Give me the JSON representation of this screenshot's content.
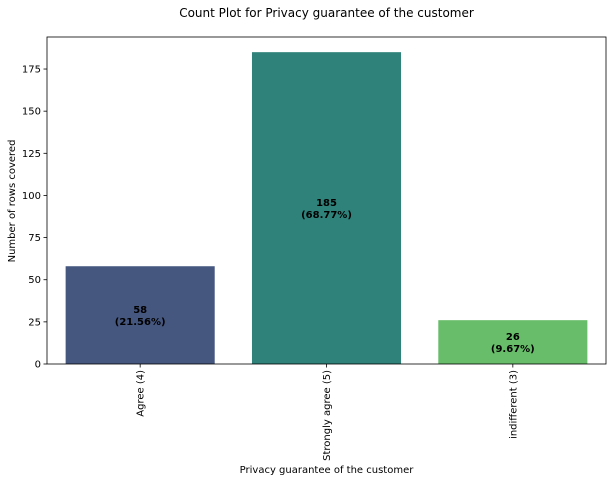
{
  "chart_data": {
    "type": "bar",
    "title": "Count Plot for Privacy guarantee of the customer",
    "xlabel": "Privacy guarantee of the customer",
    "ylabel": "Number of rows covered",
    "categories": [
      "Agree (4)",
      "Strongly agree (5)",
      "indifferent (3)"
    ],
    "values": [
      58,
      185,
      26
    ],
    "percent_labels": [
      "(21.56%)",
      "(68.77%)",
      "(9.67%)"
    ],
    "bar_colors": [
      "#45567f",
      "#2e827a",
      "#67bd69"
    ],
    "ylim": [
      0,
      194
    ],
    "yticks": [
      0,
      25,
      50,
      75,
      100,
      125,
      150,
      175
    ],
    "grid": false,
    "legend": "none"
  }
}
